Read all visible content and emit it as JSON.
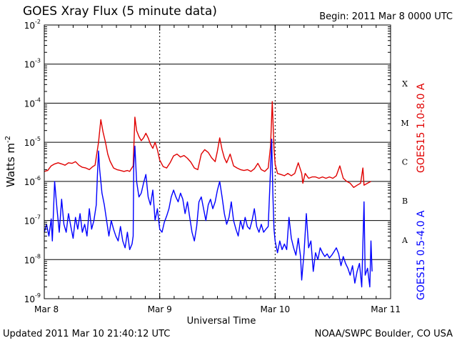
{
  "chart_data": {
    "type": "line",
    "title": "GOES Xray Flux (5 minute data)",
    "begin": "Begin:  2011 Mar 8 0000 UTC",
    "xlabel": "Universal Time",
    "ylabel": "Watts m",
    "ylabel_exp": "-2",
    "y_scale": "log",
    "ylim": [
      1e-09,
      0.01
    ],
    "xlim": [
      0,
      3
    ],
    "x_ticks": [
      {
        "label": "Mar 8",
        "value": 0
      },
      {
        "label": "Mar 9",
        "value": 1
      },
      {
        "label": "Mar 10",
        "value": 2
      },
      {
        "label": "Mar 11",
        "value": 3
      }
    ],
    "y_ticks": [
      {
        "base": "10",
        "exp": "-9",
        "value": 1e-09
      },
      {
        "base": "10",
        "exp": "-8",
        "value": 1e-08
      },
      {
        "base": "10",
        "exp": "-7",
        "value": 1e-07
      },
      {
        "base": "10",
        "exp": "-6",
        "value": 1e-06
      },
      {
        "base": "10",
        "exp": "-5",
        "value": 1e-05
      },
      {
        "base": "10",
        "exp": "-4",
        "value": 0.0001
      },
      {
        "base": "10",
        "exp": "-3",
        "value": 0.001
      },
      {
        "base": "10",
        "exp": "-2",
        "value": 0.01
      }
    ],
    "flare_classes": [
      {
        "label": "A",
        "value": 3.16e-08
      },
      {
        "label": "B",
        "value": 3.16e-07
      },
      {
        "label": "C",
        "value": 3.16e-06
      },
      {
        "label": "M",
        "value": 3.16e-05
      },
      {
        "label": "X",
        "value": 0.000316
      }
    ],
    "grid": true,
    "series": [
      {
        "name": "GOES15 1.0-8.0 A",
        "color": "#e00000",
        "points": [
          [
            0.0,
            1.8e-06
          ],
          [
            0.03,
            1.9e-06
          ],
          [
            0.06,
            2.5e-06
          ],
          [
            0.09,
            2.8e-06
          ],
          [
            0.12,
            3e-06
          ],
          [
            0.15,
            2.8e-06
          ],
          [
            0.18,
            2.6e-06
          ],
          [
            0.21,
            3e-06
          ],
          [
            0.24,
            2.9e-06
          ],
          [
            0.27,
            3.2e-06
          ],
          [
            0.3,
            2.6e-06
          ],
          [
            0.33,
            2.3e-06
          ],
          [
            0.36,
            2.2e-06
          ],
          [
            0.39,
            2e-06
          ],
          [
            0.42,
            2.4e-06
          ],
          [
            0.44,
            2.6e-06
          ],
          [
            0.47,
            1e-05
          ],
          [
            0.49,
            3.8e-05
          ],
          [
            0.51,
            1.8e-05
          ],
          [
            0.53,
            1e-05
          ],
          [
            0.55,
            5e-06
          ],
          [
            0.57,
            3.3e-06
          ],
          [
            0.6,
            2.2e-06
          ],
          [
            0.63,
            2e-06
          ],
          [
            0.66,
            1.9e-06
          ],
          [
            0.69,
            1.8e-06
          ],
          [
            0.72,
            1.9e-06
          ],
          [
            0.74,
            1.8e-06
          ],
          [
            0.77,
            2.5e-06
          ],
          [
            0.785,
            4.4e-05
          ],
          [
            0.8,
            2e-05
          ],
          [
            0.82,
            1.4e-05
          ],
          [
            0.84,
            1.1e-05
          ],
          [
            0.86,
            1.3e-05
          ],
          [
            0.88,
            1.7e-05
          ],
          [
            0.9,
            1.3e-05
          ],
          [
            0.92,
            9e-06
          ],
          [
            0.94,
            7e-06
          ],
          [
            0.96,
            1e-05
          ],
          [
            0.98,
            6.5e-06
          ],
          [
            1.0,
            3.5e-06
          ],
          [
            1.03,
            2.4e-06
          ],
          [
            1.06,
            2.2e-06
          ],
          [
            1.09,
            3e-06
          ],
          [
            1.12,
            4.5e-06
          ],
          [
            1.15,
            5e-06
          ],
          [
            1.18,
            4.2e-06
          ],
          [
            1.21,
            4.6e-06
          ],
          [
            1.24,
            3.9e-06
          ],
          [
            1.27,
            3.1e-06
          ],
          [
            1.3,
            2.2e-06
          ],
          [
            1.33,
            2e-06
          ],
          [
            1.36,
            5e-06
          ],
          [
            1.39,
            6.5e-06
          ],
          [
            1.42,
            5.5e-06
          ],
          [
            1.45,
            4e-06
          ],
          [
            1.48,
            3.2e-06
          ],
          [
            1.5,
            6e-06
          ],
          [
            1.52,
            1.3e-05
          ],
          [
            1.54,
            6.5e-06
          ],
          [
            1.56,
            4e-06
          ],
          [
            1.58,
            3e-06
          ],
          [
            1.61,
            5e-06
          ],
          [
            1.64,
            2.5e-06
          ],
          [
            1.67,
            2.2e-06
          ],
          [
            1.7,
            2e-06
          ],
          [
            1.73,
            1.9e-06
          ],
          [
            1.76,
            2e-06
          ],
          [
            1.79,
            1.8e-06
          ],
          [
            1.82,
            2.1e-06
          ],
          [
            1.85,
            2.9e-06
          ],
          [
            1.88,
            2e-06
          ],
          [
            1.91,
            1.8e-06
          ],
          [
            1.94,
            2.2e-06
          ],
          [
            1.96,
            8e-06
          ],
          [
            1.975,
            0.00011
          ],
          [
            1.99,
            7e-06
          ],
          [
            2.0,
            2.8e-06
          ],
          [
            2.02,
            1.6e-06
          ],
          [
            2.05,
            1.5e-06
          ],
          [
            2.08,
            1.4e-06
          ],
          [
            2.11,
            1.6e-06
          ],
          [
            2.14,
            1.4e-06
          ],
          [
            2.17,
            1.6e-06
          ],
          [
            2.2,
            3e-06
          ],
          [
            2.23,
            1.6e-06
          ],
          [
            2.24,
            9e-07
          ],
          [
            2.26,
            1.6e-06
          ],
          [
            2.29,
            1.2e-06
          ],
          [
            2.32,
            1.3e-06
          ],
          [
            2.35,
            1.3e-06
          ],
          [
            2.38,
            1.2e-06
          ],
          [
            2.41,
            1.3e-06
          ],
          [
            2.44,
            1.2e-06
          ],
          [
            2.47,
            1.3e-06
          ],
          [
            2.5,
            1.2e-06
          ],
          [
            2.53,
            1.4e-06
          ],
          [
            2.56,
            2.5e-06
          ],
          [
            2.59,
            1.2e-06
          ],
          [
            2.62,
            1e-06
          ],
          [
            2.65,
            9e-07
          ],
          [
            2.68,
            7e-07
          ],
          [
            2.71,
            8e-07
          ],
          [
            2.74,
            9e-07
          ],
          [
            2.76,
            2.2e-06
          ],
          [
            2.77,
            8e-07
          ],
          [
            2.8,
            9e-07
          ],
          [
            2.83,
            1e-06
          ]
        ]
      },
      {
        "name": "GOES15 0.5-4.0 A",
        "color": "#0000ff",
        "points": [
          [
            0.0,
            5e-08
          ],
          [
            0.02,
            8e-08
          ],
          [
            0.04,
            4e-08
          ],
          [
            0.06,
            1.1e-07
          ],
          [
            0.07,
            3e-08
          ],
          [
            0.09,
            1e-06
          ],
          [
            0.11,
            2e-07
          ],
          [
            0.13,
            5e-08
          ],
          [
            0.15,
            3.5e-07
          ],
          [
            0.17,
            8e-08
          ],
          [
            0.19,
            5e-08
          ],
          [
            0.21,
            1.5e-07
          ],
          [
            0.23,
            7e-08
          ],
          [
            0.25,
            3.5e-08
          ],
          [
            0.27,
            1.2e-07
          ],
          [
            0.29,
            6e-08
          ],
          [
            0.31,
            1.5e-07
          ],
          [
            0.33,
            5e-08
          ],
          [
            0.35,
            8e-08
          ],
          [
            0.37,
            4e-08
          ],
          [
            0.39,
            2e-07
          ],
          [
            0.41,
            6e-08
          ],
          [
            0.43,
            1e-07
          ],
          [
            0.45,
            2.5e-07
          ],
          [
            0.46,
            1.4e-06
          ],
          [
            0.47,
            6e-06
          ],
          [
            0.48,
            2e-06
          ],
          [
            0.5,
            5e-07
          ],
          [
            0.52,
            2.5e-07
          ],
          [
            0.54,
            1e-07
          ],
          [
            0.56,
            4e-08
          ],
          [
            0.58,
            1e-07
          ],
          [
            0.6,
            6e-08
          ],
          [
            0.62,
            4e-08
          ],
          [
            0.64,
            3e-08
          ],
          [
            0.66,
            7e-08
          ],
          [
            0.68,
            3e-08
          ],
          [
            0.7,
            2e-08
          ],
          [
            0.72,
            5e-08
          ],
          [
            0.74,
            1.8e-08
          ],
          [
            0.76,
            2.5e-08
          ],
          [
            0.77,
            4e-08
          ],
          [
            0.775,
            2.5e-06
          ],
          [
            0.785,
            8e-06
          ],
          [
            0.8,
            1e-06
          ],
          [
            0.82,
            4e-07
          ],
          [
            0.84,
            5e-07
          ],
          [
            0.86,
            9e-07
          ],
          [
            0.88,
            1.5e-06
          ],
          [
            0.9,
            4e-07
          ],
          [
            0.92,
            2.5e-07
          ],
          [
            0.94,
            6e-07
          ],
          [
            0.96,
            1e-07
          ],
          [
            0.98,
            2e-07
          ],
          [
            1.0,
            6e-08
          ],
          [
            1.02,
            5e-08
          ],
          [
            1.04,
            9e-08
          ],
          [
            1.06,
            1.3e-07
          ],
          [
            1.08,
            2e-07
          ],
          [
            1.1,
            4e-07
          ],
          [
            1.12,
            6e-07
          ],
          [
            1.14,
            4e-07
          ],
          [
            1.16,
            3e-07
          ],
          [
            1.18,
            5e-07
          ],
          [
            1.2,
            3.5e-07
          ],
          [
            1.22,
            1.5e-07
          ],
          [
            1.24,
            3e-07
          ],
          [
            1.26,
            1.2e-07
          ],
          [
            1.28,
            5e-08
          ],
          [
            1.3,
            3e-08
          ],
          [
            1.32,
            7e-08
          ],
          [
            1.34,
            3e-07
          ],
          [
            1.36,
            4e-07
          ],
          [
            1.38,
            2e-07
          ],
          [
            1.4,
            1e-07
          ],
          [
            1.42,
            2.5e-07
          ],
          [
            1.44,
            3.5e-07
          ],
          [
            1.46,
            2e-07
          ],
          [
            1.48,
            3e-07
          ],
          [
            1.5,
            6e-07
          ],
          [
            1.52,
            1e-06
          ],
          [
            1.54,
            4e-07
          ],
          [
            1.56,
            1.5e-07
          ],
          [
            1.58,
            8e-08
          ],
          [
            1.6,
            1.2e-07
          ],
          [
            1.62,
            3e-07
          ],
          [
            1.64,
            1e-07
          ],
          [
            1.66,
            6e-08
          ],
          [
            1.68,
            4e-08
          ],
          [
            1.7,
            1e-07
          ],
          [
            1.72,
            6e-08
          ],
          [
            1.74,
            1.2e-07
          ],
          [
            1.76,
            7e-08
          ],
          [
            1.78,
            6e-08
          ],
          [
            1.8,
            1e-07
          ],
          [
            1.82,
            2e-07
          ],
          [
            1.84,
            7e-08
          ],
          [
            1.86,
            5e-08
          ],
          [
            1.88,
            8e-08
          ],
          [
            1.9,
            5e-08
          ],
          [
            1.92,
            6e-08
          ],
          [
            1.94,
            7e-08
          ],
          [
            1.955,
            9e-07
          ],
          [
            1.97,
            1.2e-05
          ],
          [
            1.98,
            5e-07
          ],
          [
            1.99,
            6e-08
          ],
          [
            2.0,
            3e-08
          ],
          [
            2.02,
            1.5e-08
          ],
          [
            2.04,
            3e-08
          ],
          [
            2.06,
            1.8e-08
          ],
          [
            2.08,
            2.5e-08
          ],
          [
            2.1,
            1.8e-08
          ],
          [
            2.12,
            1.2e-07
          ],
          [
            2.14,
            3.5e-08
          ],
          [
            2.16,
            2e-08
          ],
          [
            2.18,
            1.3e-08
          ],
          [
            2.2,
            3.5e-08
          ],
          [
            2.22,
            1.2e-08
          ],
          [
            2.23,
            3e-09
          ],
          [
            2.25,
            1.5e-08
          ],
          [
            2.27,
            1.5e-07
          ],
          [
            2.29,
            2e-08
          ],
          [
            2.31,
            3e-08
          ],
          [
            2.33,
            5e-09
          ],
          [
            2.35,
            1.5e-08
          ],
          [
            2.37,
            1e-08
          ],
          [
            2.39,
            2e-08
          ],
          [
            2.41,
            1.5e-08
          ],
          [
            2.43,
            1.2e-08
          ],
          [
            2.45,
            1.4e-08
          ],
          [
            2.47,
            1.1e-08
          ],
          [
            2.49,
            1.3e-08
          ],
          [
            2.51,
            1.6e-08
          ],
          [
            2.53,
            2e-08
          ],
          [
            2.55,
            1.4e-08
          ],
          [
            2.57,
            7e-09
          ],
          [
            2.59,
            1.2e-08
          ],
          [
            2.61,
            8e-09
          ],
          [
            2.63,
            6e-09
          ],
          [
            2.65,
            4e-09
          ],
          [
            2.67,
            7e-09
          ],
          [
            2.69,
            2.5e-09
          ],
          [
            2.71,
            5e-09
          ],
          [
            2.73,
            8e-09
          ],
          [
            2.75,
            2e-09
          ],
          [
            2.77,
            3e-07
          ],
          [
            2.78,
            4e-09
          ],
          [
            2.8,
            6e-09
          ],
          [
            2.82,
            2e-09
          ],
          [
            2.83,
            3e-08
          ],
          [
            2.84,
            5e-09
          ]
        ]
      }
    ]
  },
  "footer": {
    "updated": "Updated 2011 Mar 10 21:40:12 UTC",
    "source": "NOAA/SWPC Boulder, CO USA"
  }
}
